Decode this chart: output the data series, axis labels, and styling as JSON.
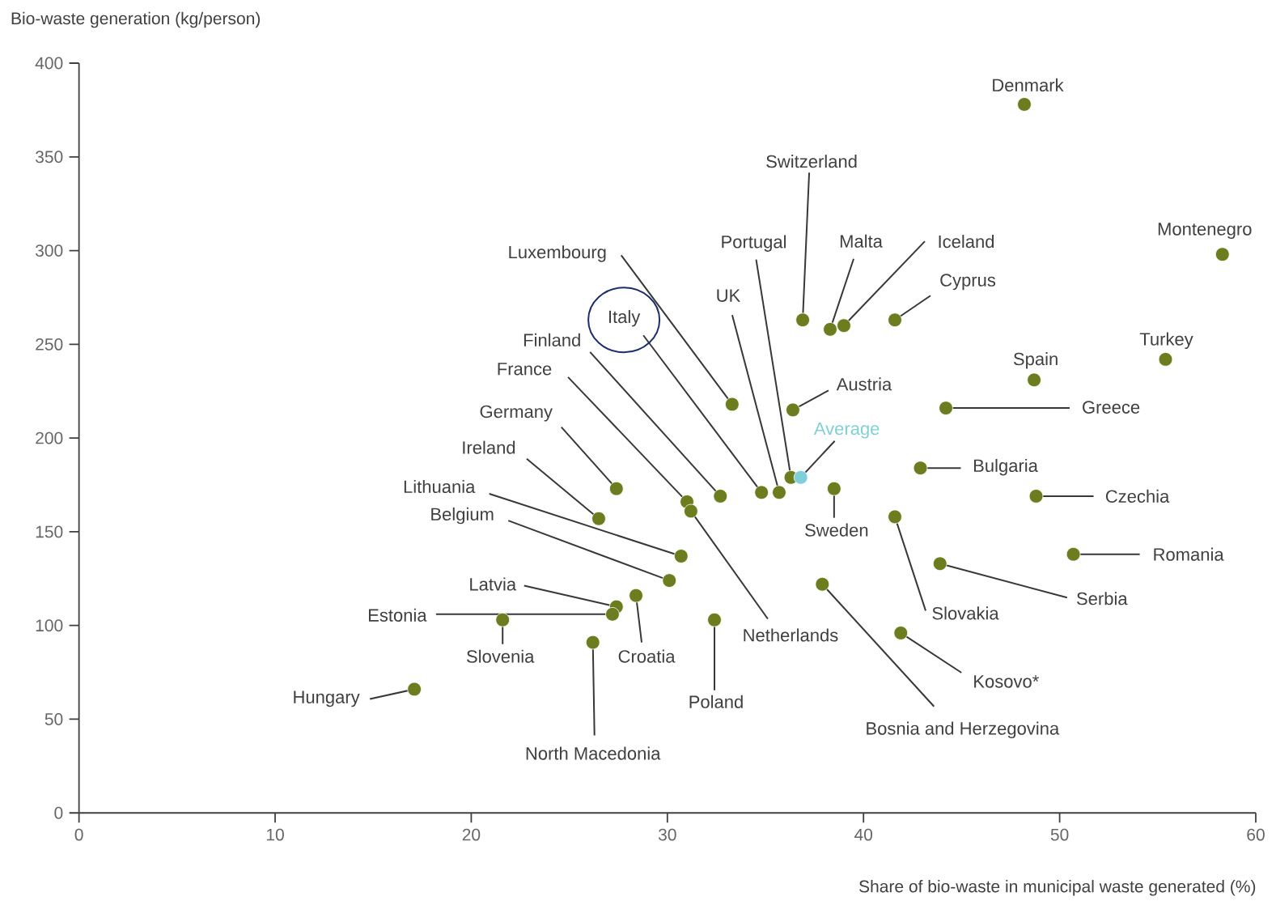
{
  "chart_data": {
    "type": "scatter",
    "xlabel": "Share of bio-waste in municipal waste generated (%)",
    "ylabel": "Bio-waste generation (kg/person)",
    "xlim": [
      0,
      60
    ],
    "ylim": [
      0,
      400
    ],
    "xticks": [
      0,
      10,
      20,
      30,
      40,
      50,
      60
    ],
    "yticks": [
      0,
      50,
      100,
      150,
      200,
      250,
      300,
      350,
      400
    ],
    "grid": false,
    "legend": false,
    "series": [
      {
        "color": "#6b7d1e",
        "x": [
          48.2,
          58.3,
          55.4,
          48.7,
          44.2,
          42.9,
          48.8,
          50.7,
          43.9,
          41.6,
          41.9,
          37.9,
          38.5,
          36.4,
          41.6,
          39.0,
          38.3,
          36.9,
          36.3,
          35.7,
          34.8,
          33.3,
          32.7,
          31.0,
          27.4,
          26.5,
          30.7,
          30.1,
          31.2,
          27.4,
          27.2,
          28.4,
          21.6,
          26.2,
          32.4,
          17.1
        ],
        "values": [
          378,
          298,
          242,
          231,
          216,
          184,
          169,
          138,
          133,
          158,
          96,
          122,
          173,
          215,
          263,
          260,
          258,
          263,
          179,
          171,
          171,
          218,
          169,
          166,
          173,
          157,
          137,
          124,
          161,
          110,
          106,
          116,
          103,
          91,
          103,
          66
        ]
      },
      {
        "name": "Average",
        "color": "#7fcfd8",
        "x": [
          36.8
        ],
        "values": [
          179
        ]
      }
    ],
    "annotations": [
      {
        "text": "Denmark",
        "x": 48.2,
        "y": 378
      },
      {
        "text": "Montenegro",
        "x": 58.3,
        "y": 298
      },
      {
        "text": "Turkey",
        "x": 55.4,
        "y": 242
      },
      {
        "text": "Spain",
        "x": 48.7,
        "y": 231
      },
      {
        "text": "Greece",
        "x": 44.2,
        "y": 216
      },
      {
        "text": "Bulgaria",
        "x": 42.9,
        "y": 184
      },
      {
        "text": "Czechia",
        "x": 48.8,
        "y": 169
      },
      {
        "text": "Romania",
        "x": 50.7,
        "y": 138
      },
      {
        "text": "Serbia",
        "x": 43.9,
        "y": 133
      },
      {
        "text": "Slovakia",
        "x": 41.6,
        "y": 158
      },
      {
        "text": "Kosovo*",
        "x": 41.9,
        "y": 96
      },
      {
        "text": "Bosnia and Herzegovina",
        "x": 37.9,
        "y": 122
      },
      {
        "text": "Sweden",
        "x": 38.5,
        "y": 173
      },
      {
        "text": "Austria",
        "x": 36.4,
        "y": 215
      },
      {
        "text": "Cyprus",
        "x": 41.6,
        "y": 263
      },
      {
        "text": "Iceland",
        "x": 39.0,
        "y": 260
      },
      {
        "text": "Malta",
        "x": 38.3,
        "y": 258
      },
      {
        "text": "Switzerland",
        "x": 36.9,
        "y": 263
      },
      {
        "text": "Portugal",
        "x": 36.3,
        "y": 179
      },
      {
        "text": "UK",
        "x": 35.7,
        "y": 171
      },
      {
        "text": "Italy",
        "x": 34.8,
        "y": 171
      },
      {
        "text": "Luxembourg",
        "x": 33.3,
        "y": 218
      },
      {
        "text": "Finland",
        "x": 32.7,
        "y": 169
      },
      {
        "text": "France",
        "x": 31.0,
        "y": 166
      },
      {
        "text": "Germany",
        "x": 27.4,
        "y": 173
      },
      {
        "text": "Ireland",
        "x": 26.5,
        "y": 157
      },
      {
        "text": "Lithuania",
        "x": 30.7,
        "y": 137
      },
      {
        "text": "Belgium",
        "x": 30.1,
        "y": 124
      },
      {
        "text": "Netherlands",
        "x": 31.2,
        "y": 161
      },
      {
        "text": "Latvia",
        "x": 27.4,
        "y": 110
      },
      {
        "text": "Estonia",
        "x": 27.2,
        "y": 106
      },
      {
        "text": "Croatia",
        "x": 28.4,
        "y": 116
      },
      {
        "text": "Slovenia",
        "x": 21.6,
        "y": 103
      },
      {
        "text": "North Macedonia",
        "x": 26.2,
        "y": 91
      },
      {
        "text": "Poland",
        "x": 32.4,
        "y": 103
      },
      {
        "text": "Hungary",
        "x": 17.1,
        "y": 66
      }
    ]
  }
}
